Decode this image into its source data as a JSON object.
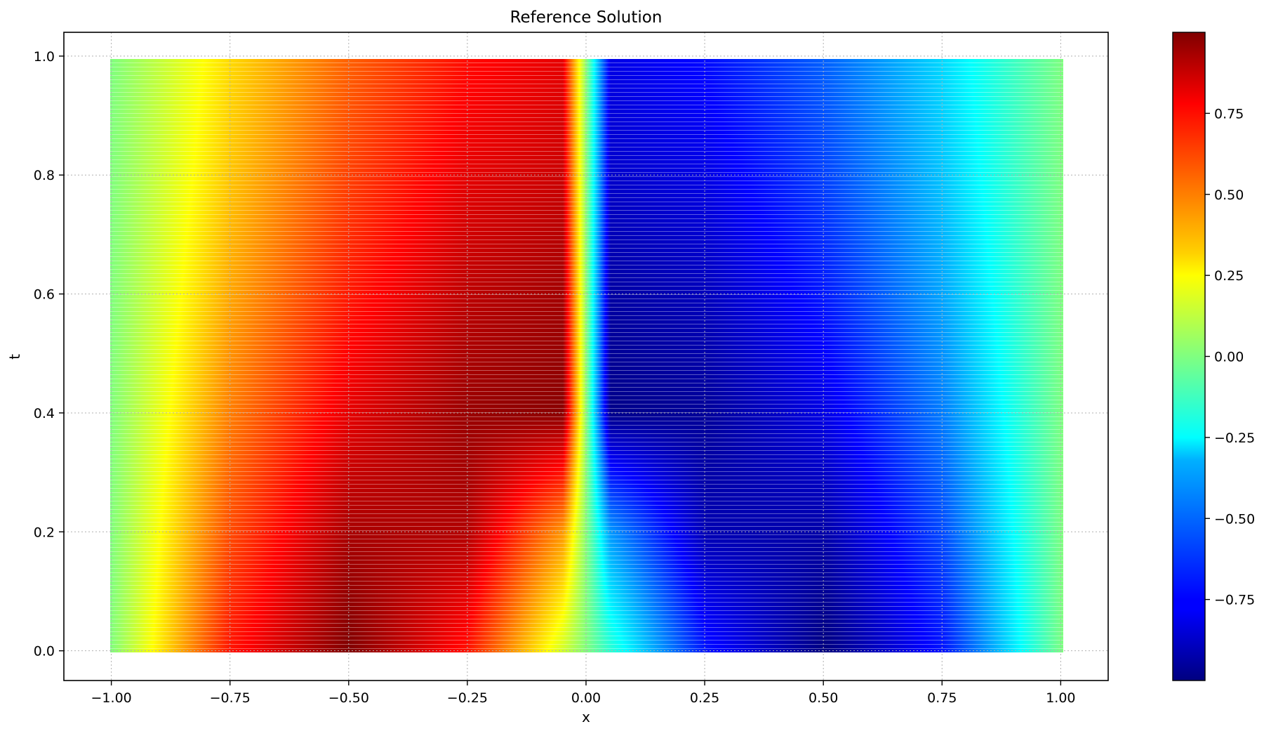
{
  "chart_data": {
    "type": "heatmap",
    "title": "Reference Solution",
    "xlabel": "x",
    "ylabel": "t",
    "xlim": [
      -1.1,
      1.1
    ],
    "ylim": [
      -0.05,
      1.04
    ],
    "x_ticks": [
      "−1.00",
      "−0.75",
      "−0.50",
      "−0.25",
      "0.00",
      "0.25",
      "0.50",
      "0.75",
      "1.00"
    ],
    "x_tick_values": [
      -1.0,
      -0.75,
      -0.5,
      -0.25,
      0.0,
      0.25,
      0.5,
      0.75,
      1.0
    ],
    "y_ticks": [
      "0.0",
      "0.2",
      "0.4",
      "0.6",
      "0.8",
      "1.0"
    ],
    "y_tick_values": [
      0.0,
      0.2,
      0.4,
      0.6,
      0.8,
      1.0
    ],
    "grid": true,
    "colormap": "jet",
    "x_range": [
      -1.0,
      1.0
    ],
    "t_range": [
      0.0,
      0.99
    ],
    "field": {
      "description_of_values": "u(x,t) sampled on grid",
      "x_samples": [
        -1.0,
        -0.75,
        -0.5,
        -0.25,
        -0.05,
        0.0,
        0.05,
        0.25,
        0.5,
        0.75,
        1.0
      ],
      "rows": [
        {
          "t": 0.0,
          "u": [
            0.0,
            0.71,
            1.0,
            0.71,
            0.16,
            0.0,
            -0.16,
            -0.71,
            -1.0,
            -0.71,
            0.0
          ]
        },
        {
          "t": 0.2,
          "u": [
            0.0,
            0.6,
            0.92,
            0.9,
            0.45,
            0.0,
            -0.45,
            -0.9,
            -0.92,
            -0.6,
            0.0
          ]
        },
        {
          "t": 0.4,
          "u": [
            0.0,
            0.5,
            0.8,
            0.95,
            0.98,
            0.0,
            -0.98,
            -0.95,
            -0.8,
            -0.5,
            0.0
          ]
        },
        {
          "t": 0.6,
          "u": [
            0.0,
            0.42,
            0.7,
            0.88,
            0.93,
            0.0,
            -0.93,
            -0.88,
            -0.7,
            -0.42,
            0.0
          ]
        },
        {
          "t": 0.8,
          "u": [
            0.0,
            0.36,
            0.62,
            0.8,
            0.85,
            0.0,
            -0.85,
            -0.8,
            -0.62,
            -0.36,
            0.0
          ]
        },
        {
          "t": 0.99,
          "u": [
            0.0,
            0.32,
            0.56,
            0.73,
            0.8,
            0.0,
            -0.8,
            -0.73,
            -0.56,
            -0.32,
            0.0
          ]
        }
      ]
    },
    "colorbar": {
      "range": [
        -1.0,
        1.0
      ],
      "ticks": [
        "0.75",
        "0.50",
        "0.25",
        "0.00",
        "−0.25",
        "−0.50",
        "−0.75"
      ],
      "tick_values": [
        0.75,
        0.5,
        0.25,
        0.0,
        -0.25,
        -0.5,
        -0.75
      ]
    }
  }
}
